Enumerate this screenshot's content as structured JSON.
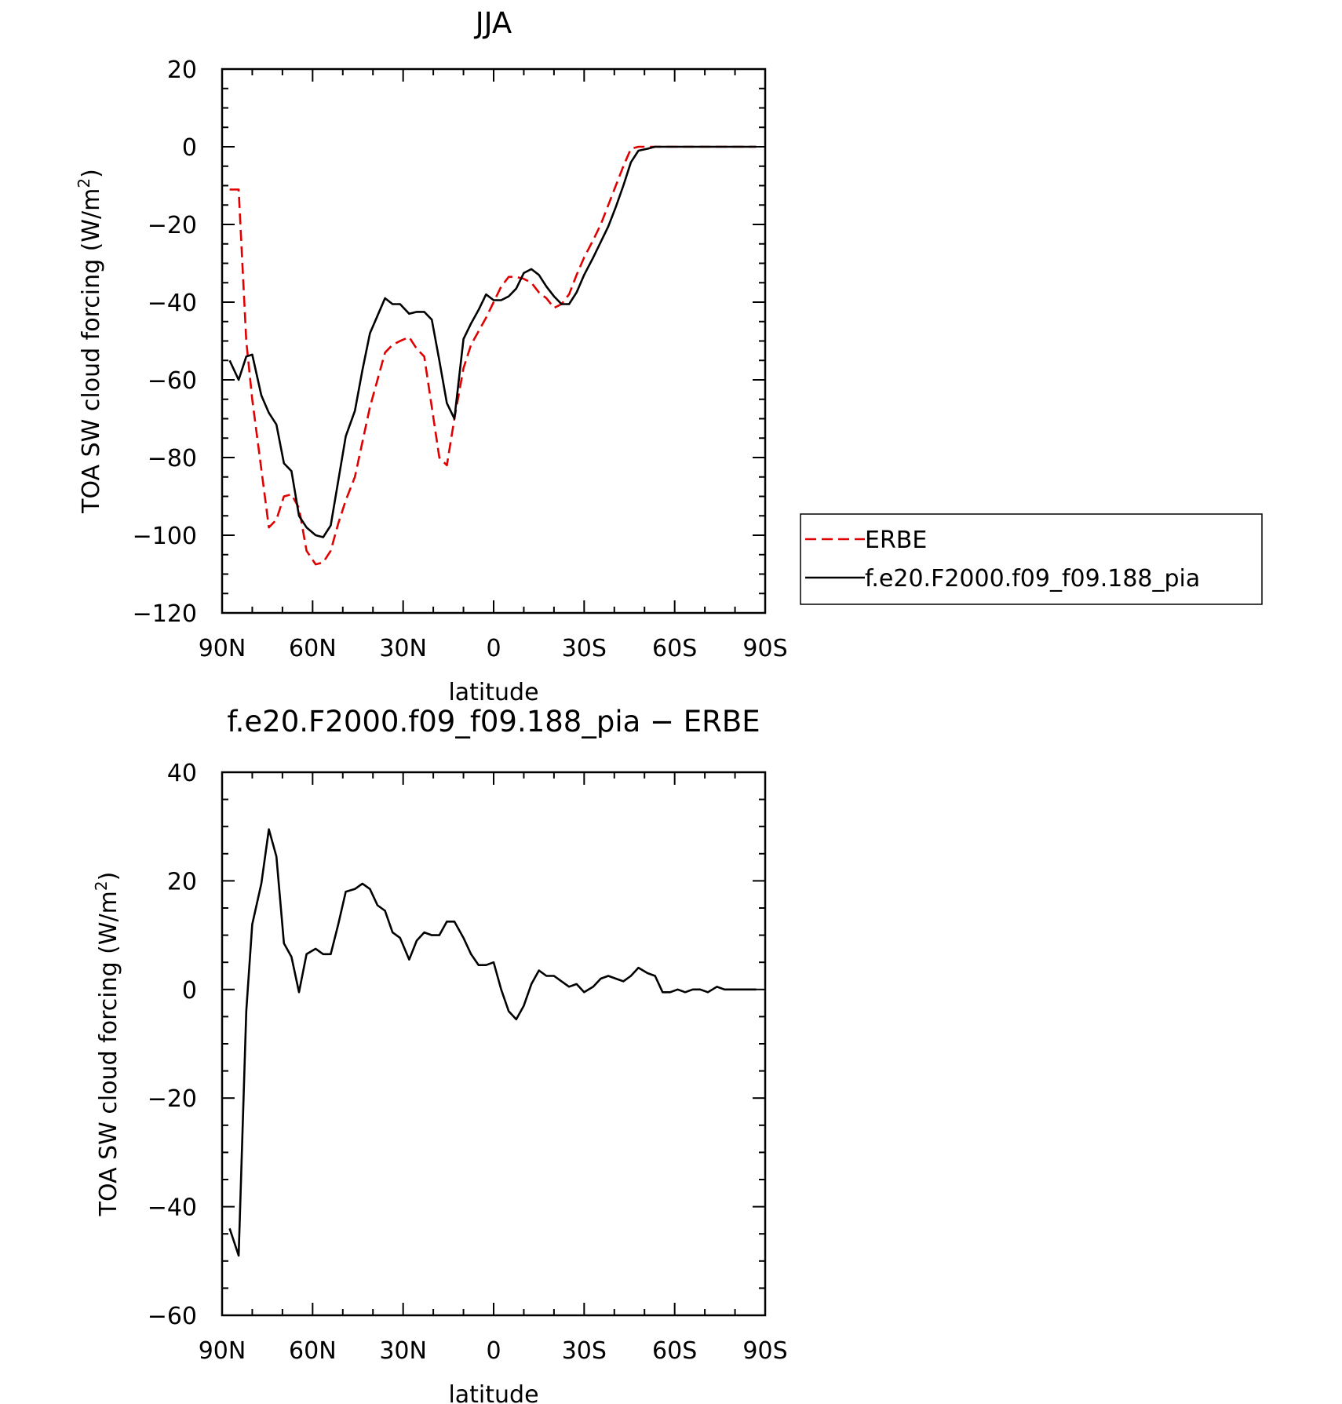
{
  "chart_data": [
    {
      "type": "line",
      "title": "JJA",
      "xlabel": "latitude",
      "ylabel": "TOA SW cloud forcing (W/m",
      "ylabel_sup": "2",
      "ylabel_close": ")",
      "xlim": [
        90,
        -90
      ],
      "ylim": [
        -120,
        20
      ],
      "x_ticks": [
        90,
        60,
        30,
        0,
        -30,
        -60,
        -90
      ],
      "x_tick_labels": [
        "90N",
        "60N",
        "30N",
        "0",
        "30S",
        "60S",
        "90S"
      ],
      "y_ticks": [
        20,
        0,
        -20,
        -40,
        -60,
        -80,
        -100,
        -120
      ],
      "y_tick_labels": [
        "20",
        "0",
        "−20",
        "−40",
        "−60",
        "−80",
        "−100",
        "−120"
      ],
      "legend_position": "right",
      "series": [
        {
          "name": "ERBE",
          "color": "#e00000",
          "dash": "dashed",
          "x": [
            87.5,
            84.5,
            82,
            80,
            77,
            74.5,
            72,
            69.5,
            67,
            64.5,
            62,
            59,
            56.5,
            54,
            51.5,
            49,
            46,
            43.5,
            41,
            38.5,
            36,
            33.5,
            31,
            28,
            25.5,
            23,
            20.5,
            18,
            15.5,
            13,
            10,
            7.5,
            5,
            2.5,
            0,
            -2.5,
            -5,
            -7.5,
            -10,
            -12.5,
            -15,
            -17.5,
            -20,
            -22.5,
            -25,
            -27.5,
            -30,
            -33,
            -35.5,
            -38,
            -40.5,
            -43,
            -45.5,
            -48,
            -51,
            -53.5,
            -56,
            -58.5,
            -61,
            -63.5,
            -66,
            -68.5,
            -71,
            -74,
            -76.5,
            -79,
            -81.5,
            -84,
            -87
          ],
          "y": [
            -11,
            -11,
            -50,
            -65,
            -83,
            -98,
            -96,
            -90,
            -89.5,
            -93,
            -104,
            -107.5,
            -107,
            -104,
            -97,
            -91,
            -85,
            -76,
            -67,
            -60,
            -53,
            -51,
            -50,
            -49,
            -52,
            -54,
            -67,
            -80,
            -82,
            -70,
            -57,
            -51,
            -47.5,
            -44,
            -40,
            -36,
            -33.5,
            -33.5,
            -34,
            -35,
            -37.5,
            -39,
            -41.5,
            -40.5,
            -38,
            -33,
            -28.5,
            -24,
            -20,
            -15,
            -10,
            -5,
            -0.5,
            0,
            0,
            0,
            0,
            0,
            0,
            0,
            0,
            0,
            0,
            0,
            0,
            0,
            0,
            0,
            0
          ]
        },
        {
          "name": "f.e20.F2000.f09_f09.188_pia",
          "color": "#000000",
          "dash": "solid",
          "x": [
            87.5,
            84.5,
            82,
            80,
            77,
            74.5,
            72,
            69.5,
            67,
            64.5,
            62,
            59,
            56.5,
            54,
            51.5,
            49,
            46,
            43.5,
            41,
            38.5,
            36,
            33.5,
            31,
            28,
            25.5,
            23,
            20.5,
            18,
            15.5,
            13,
            10,
            7.5,
            5,
            2.5,
            0,
            -2.5,
            -5,
            -7.5,
            -10,
            -12.5,
            -15,
            -17.5,
            -20,
            -22.5,
            -25,
            -27.5,
            -30,
            -33,
            -35.5,
            -38,
            -40.5,
            -43,
            -45.5,
            -48,
            -51,
            -53.5,
            -56,
            -58.5,
            -61,
            -63.5,
            -66,
            -68.5,
            -71,
            -74,
            -76.5,
            -79,
            -81.5,
            -84,
            -87
          ],
          "y": [
            -55,
            -60,
            -54,
            -53.5,
            -64,
            -68.5,
            -71.5,
            -81.5,
            -83.5,
            -95,
            -98,
            -100,
            -100.5,
            -97.5,
            -86,
            -74.5,
            -68,
            -57.5,
            -48,
            -43.5,
            -39,
            -40.5,
            -40.5,
            -43,
            -42.5,
            -42.5,
            -44.5,
            -55,
            -66,
            -70,
            -49.5,
            -45.5,
            -42,
            -38,
            -39.5,
            -39.5,
            -38.5,
            -36.5,
            -32.5,
            -31.5,
            -33,
            -36,
            -38.5,
            -40.5,
            -40.5,
            -37.5,
            -33,
            -28.5,
            -24.5,
            -20.5,
            -15.5,
            -10,
            -4,
            -1,
            -0.5,
            0,
            0,
            0,
            0,
            0,
            0,
            0,
            0,
            0,
            0,
            0,
            0,
            0,
            0
          ]
        }
      ]
    },
    {
      "type": "line",
      "title": "f.e20.F2000.f09_f09.188_pia − ERBE",
      "xlabel": "latitude",
      "ylabel": "TOA SW cloud forcing (W/m",
      "ylabel_sup": "2",
      "ylabel_close": ")",
      "xlim": [
        90,
        -90
      ],
      "ylim": [
        -60,
        40
      ],
      "x_ticks": [
        90,
        60,
        30,
        0,
        -30,
        -60,
        -90
      ],
      "x_tick_labels": [
        "90N",
        "60N",
        "30N",
        "0",
        "30S",
        "60S",
        "90S"
      ],
      "y_ticks": [
        40,
        20,
        0,
        -20,
        -40,
        -60
      ],
      "y_tick_labels": [
        "40",
        "20",
        "0",
        "−20",
        "−40",
        "−60"
      ],
      "series": [
        {
          "name": "",
          "color": "#000000",
          "dash": "solid",
          "x": [
            87.5,
            84.5,
            82,
            80,
            77,
            74.5,
            72,
            69.5,
            67,
            64.5,
            62,
            59,
            56.5,
            54,
            51.5,
            49,
            46,
            43.5,
            41,
            38.5,
            36,
            33.5,
            31,
            28,
            25.5,
            23,
            20.5,
            18,
            15.5,
            13,
            10,
            7.5,
            5,
            2.5,
            0,
            -2.5,
            -5,
            -7.5,
            -10,
            -12.5,
            -15,
            -17.5,
            -20,
            -22.5,
            -25,
            -27.5,
            -30,
            -33,
            -35.5,
            -38,
            -40.5,
            -43,
            -45.5,
            -48,
            -51,
            -53.5,
            -56,
            -58.5,
            -61,
            -63.5,
            -66,
            -68.5,
            -71,
            -74,
            -76.5,
            -79,
            -81.5,
            -84,
            -87
          ],
          "y": [
            -44,
            -49,
            -4,
            12,
            19.5,
            29.5,
            24.5,
            8.5,
            6,
            -0.5,
            6.5,
            7.5,
            6.5,
            6.5,
            12,
            18,
            18.5,
            19.5,
            18.5,
            15.5,
            14.5,
            10.5,
            9.5,
            5.5,
            9,
            10.5,
            10,
            10,
            12.5,
            12.5,
            9.5,
            6.5,
            4.5,
            4.5,
            5,
            0,
            -4,
            -5.5,
            -3,
            1,
            3.5,
            2.5,
            2.5,
            1.5,
            0.5,
            1,
            -0.5,
            0.5,
            2,
            2.5,
            2,
            1.5,
            2.5,
            4,
            3,
            2.5,
            -0.5,
            -0.5,
            0,
            -0.5,
            0,
            0,
            -0.5,
            0.5,
            0,
            0,
            0,
            0,
            0
          ]
        }
      ]
    }
  ]
}
